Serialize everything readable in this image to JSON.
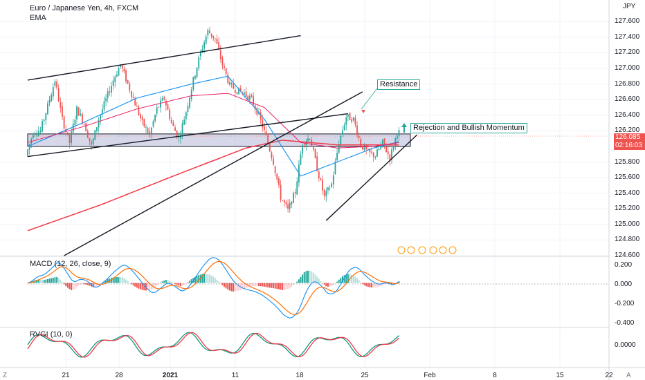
{
  "header": {
    "title": "Euro / Japanese Yen, 4h, FXCM",
    "ema_label": "EMA",
    "currency": "JPY"
  },
  "macd": {
    "label": "MACD (12, 26, close, 9)"
  },
  "rvgi": {
    "label": "RVGI (10, 0)"
  },
  "annotations": {
    "resistance": "Resistance",
    "rejection": "Rejection and Bullish Momentum"
  },
  "price_axis": {
    "ticks": [
      "127.600",
      "127.400",
      "127.200",
      "127.000",
      "126.800",
      "126.600",
      "126.400",
      "126.200",
      "125.800",
      "125.600",
      "125.400",
      "125.200",
      "125.000",
      "124.800",
      "124.600"
    ],
    "current_price": "126.085",
    "countdown": "02:16:03"
  },
  "macd_axis": {
    "ticks": [
      "0.200",
      "0.000",
      "-0.200",
      "-0.400"
    ]
  },
  "rvgi_axis": {
    "ticks": [
      "0.0000"
    ]
  },
  "time_axis": {
    "ticks": [
      "21",
      "28",
      "2021",
      "11",
      "18",
      "25",
      "Feb",
      "8",
      "15",
      "22"
    ]
  },
  "corner": {
    "left": "Z",
    "right": "A"
  },
  "colors": {
    "up": "#26a69a",
    "down": "#ef5350",
    "ema_fast": "#2196f3",
    "ema_mid": "#e91e63",
    "ema_slow": "#f23645",
    "zone": "#b2b5d6",
    "macd": "#2196f3",
    "signal": "#ff6d00",
    "rvgi": "#089981",
    "rvgi_signal": "#f23645"
  },
  "chart_data": {
    "type": "line",
    "symbol": "EUR/JPY",
    "timeframe": "4h",
    "ylim": [
      124.6,
      127.7
    ],
    "x_ticks": [
      "21",
      "28",
      "2021",
      "11",
      "18",
      "25",
      "Feb",
      "8",
      "15",
      "22"
    ],
    "price_path": [
      [
        0,
        125.88
      ],
      [
        4,
        126.18
      ],
      [
        8,
        126.2
      ],
      [
        12,
        126.52
      ],
      [
        16,
        126.85
      ],
      [
        20,
        126.35
      ],
      [
        24,
        126.05
      ],
      [
        28,
        126.48
      ],
      [
        32,
        126.3
      ],
      [
        36,
        126.0
      ],
      [
        40,
        126.35
      ],
      [
        44,
        126.6
      ],
      [
        48,
        126.85
      ],
      [
        52,
        127.05
      ],
      [
        56,
        126.8
      ],
      [
        60,
        126.55
      ],
      [
        64,
        126.3
      ],
      [
        68,
        126.15
      ],
      [
        72,
        126.48
      ],
      [
        76,
        126.62
      ],
      [
        80,
        126.3
      ],
      [
        84,
        126.1
      ],
      [
        88,
        126.45
      ],
      [
        92,
        126.85
      ],
      [
        96,
        127.2
      ],
      [
        100,
        127.48
      ],
      [
        104,
        127.38
      ],
      [
        108,
        127.05
      ],
      [
        112,
        126.78
      ],
      [
        116,
        126.72
      ],
      [
        120,
        126.68
      ],
      [
        124,
        126.6
      ],
      [
        128,
        126.4
      ],
      [
        132,
        126.12
      ],
      [
        136,
        125.8
      ],
      [
        140,
        125.35
      ],
      [
        144,
        125.18
      ],
      [
        148,
        125.42
      ],
      [
        152,
        126.05
      ],
      [
        156,
        126.12
      ],
      [
        160,
        125.72
      ],
      [
        164,
        125.35
      ],
      [
        168,
        125.52
      ],
      [
        172,
        126.05
      ],
      [
        176,
        126.38
      ],
      [
        180,
        126.35
      ],
      [
        184,
        126.02
      ],
      [
        188,
        125.92
      ],
      [
        192,
        125.88
      ],
      [
        196,
        126.05
      ],
      [
        200,
        125.85
      ],
      [
        204,
        126.18
      ]
    ],
    "ema_slow": [
      [
        0,
        124.92
      ],
      [
        40,
        125.25
      ],
      [
        80,
        125.62
      ],
      [
        120,
        125.98
      ],
      [
        140,
        126.08
      ],
      [
        170,
        126.02
      ],
      [
        204,
        126.02
      ]
    ],
    "ema_fast": [
      [
        0,
        126.0
      ],
      [
        30,
        126.3
      ],
      [
        60,
        126.62
      ],
      [
        90,
        126.8
      ],
      [
        110,
        126.9
      ],
      [
        130,
        126.35
      ],
      [
        150,
        125.62
      ],
      [
        170,
        125.8
      ],
      [
        190,
        125.98
      ],
      [
        204,
        126.06
      ]
    ],
    "ema_mid": [
      [
        0,
        126.05
      ],
      [
        30,
        126.25
      ],
      [
        60,
        126.48
      ],
      [
        90,
        126.65
      ],
      [
        110,
        126.68
      ],
      [
        130,
        126.5
      ],
      [
        150,
        126.05
      ],
      [
        170,
        125.98
      ],
      [
        190,
        126.0
      ],
      [
        204,
        126.05
      ]
    ],
    "support_zone": [
      126.0,
      126.16
    ],
    "trendlines": [
      {
        "from": [
          0,
          126.85
        ],
        "to": [
          150,
          127.42
        ]
      },
      {
        "from": [
          0,
          125.87
        ],
        "to": [
          176,
          126.42
        ]
      },
      {
        "from": [
          20,
          124.6
        ],
        "to": [
          184,
          126.7
        ]
      },
      {
        "from": [
          164,
          125.05
        ],
        "to": [
          214,
          126.15
        ]
      }
    ],
    "macd": {
      "ylim": [
        -0.45,
        0.25
      ],
      "zero": 0.0
    },
    "rvgi": {
      "zero": 0.0
    }
  }
}
